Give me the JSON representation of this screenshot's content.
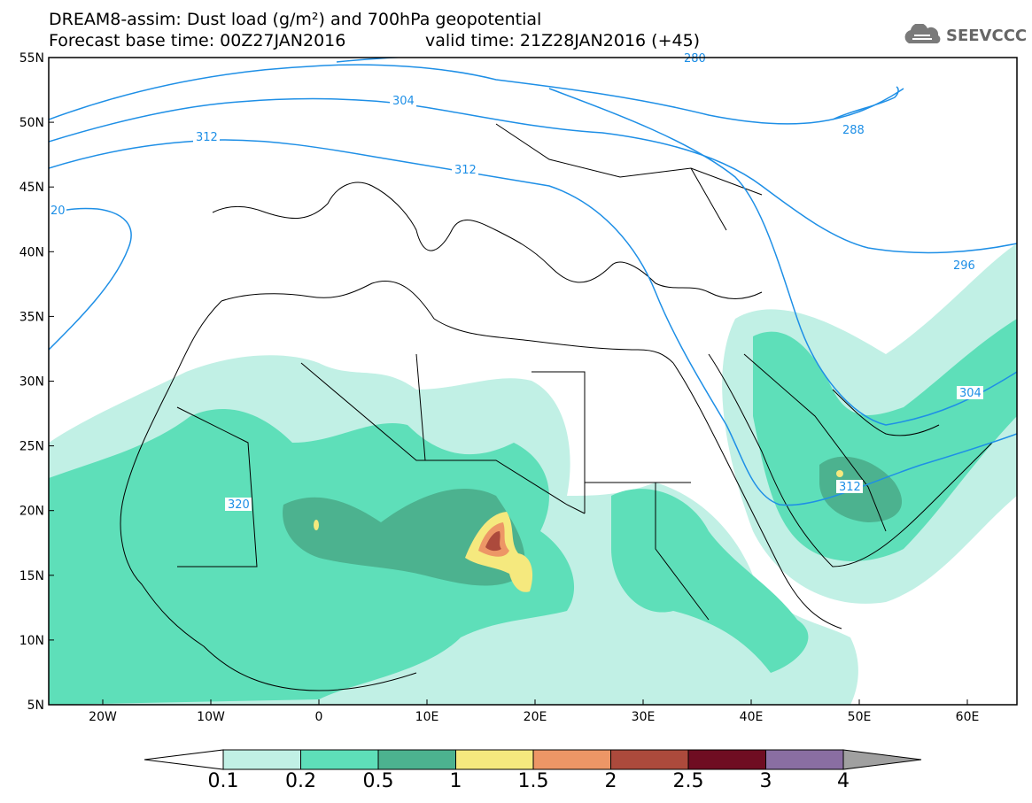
{
  "header": {
    "line1": "DREAM8-assim: Dust load (g/m²) and 700hPa geopotential",
    "line2_left": "Forecast base time: 00Z27JAN2016",
    "line2_right": "valid time: 21Z28JAN2016 (+45)",
    "logo_text": "SEEVCCC"
  },
  "map": {
    "lat_labels": [
      "55N",
      "50N",
      "45N",
      "40N",
      "35N",
      "30N",
      "25N",
      "20N",
      "15N",
      "10N",
      "5N"
    ],
    "lon_labels": [
      "20W",
      "10W",
      "0",
      "10E",
      "20E",
      "30E",
      "40E",
      "50E",
      "60E"
    ],
    "contour_labels": [
      "280",
      "304",
      "312",
      "312",
      "288",
      "296",
      "304",
      "312",
      "320",
      "20"
    ],
    "colors": {
      "c1": "#c1f0e5",
      "c2": "#5edfb9",
      "c3": "#4cb28f",
      "c4": "#f5e97e",
      "c5": "#ed9666",
      "c6": "#ac4a3c",
      "c7": "#6f0d22",
      "c8": "#8a6ea2",
      "coast": "#000000",
      "contour": "#1e8fe6"
    }
  },
  "colorbar": {
    "labels": [
      "0.1",
      "0.2",
      "0.5",
      "1",
      "1.5",
      "2",
      "2.5",
      "3",
      "4"
    ],
    "colors": [
      "#c1f0e5",
      "#5edfb9",
      "#4cb28f",
      "#f5e97e",
      "#ed9666",
      "#ac4a3c",
      "#6f0d22",
      "#8a6ea2"
    ]
  }
}
